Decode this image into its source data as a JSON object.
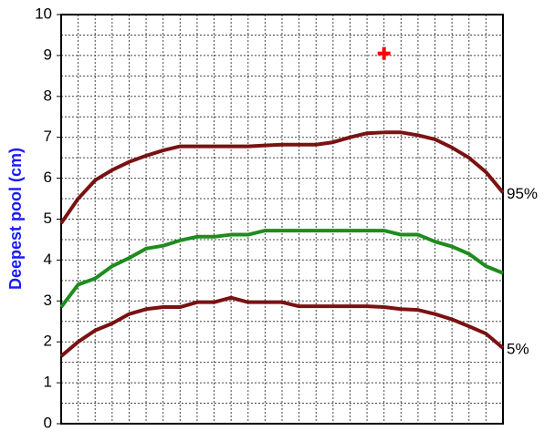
{
  "chart_data": {
    "type": "line",
    "ylabel": "Deepest pool (cm)",
    "x": [
      0,
      1,
      2,
      3,
      4,
      5,
      6,
      7,
      8,
      9,
      10,
      11,
      12,
      13,
      14,
      15,
      16,
      17,
      18,
      19,
      20,
      21,
      22,
      23,
      24,
      25,
      26
    ],
    "xlim": [
      0,
      26
    ],
    "ylim": [
      0,
      10
    ],
    "yticks": [
      0,
      1,
      2,
      3,
      4,
      5,
      6,
      7,
      8,
      9,
      10
    ],
    "grid": true,
    "series": [
      {
        "name": "95%",
        "color": "#7a1212",
        "values": [
          4.9,
          5.5,
          5.95,
          6.2,
          6.4,
          6.55,
          6.68,
          6.78,
          6.78,
          6.78,
          6.78,
          6.78,
          6.8,
          6.82,
          6.82,
          6.82,
          6.88,
          7.0,
          7.1,
          7.12,
          7.12,
          7.05,
          6.95,
          6.75,
          6.5,
          6.15,
          5.65
        ]
      },
      {
        "color": "#1e8c1e",
        "values": [
          2.85,
          3.4,
          3.55,
          3.85,
          4.05,
          4.28,
          4.35,
          4.48,
          4.57,
          4.57,
          4.62,
          4.62,
          4.72,
          4.72,
          4.72,
          4.72,
          4.72,
          4.72,
          4.72,
          4.72,
          4.62,
          4.62,
          4.45,
          4.33,
          4.15,
          3.85,
          3.68
        ]
      },
      {
        "name": "5%",
        "color": "#7a1212",
        "values": [
          1.65,
          2.0,
          2.28,
          2.45,
          2.68,
          2.8,
          2.85,
          2.85,
          2.97,
          2.97,
          3.08,
          2.97,
          2.97,
          2.97,
          2.87,
          2.87,
          2.87,
          2.87,
          2.87,
          2.85,
          2.8,
          2.78,
          2.68,
          2.55,
          2.38,
          2.2,
          1.85
        ]
      }
    ],
    "marker": {
      "x": 19,
      "y": 9.05,
      "color": "#ff0000"
    }
  }
}
